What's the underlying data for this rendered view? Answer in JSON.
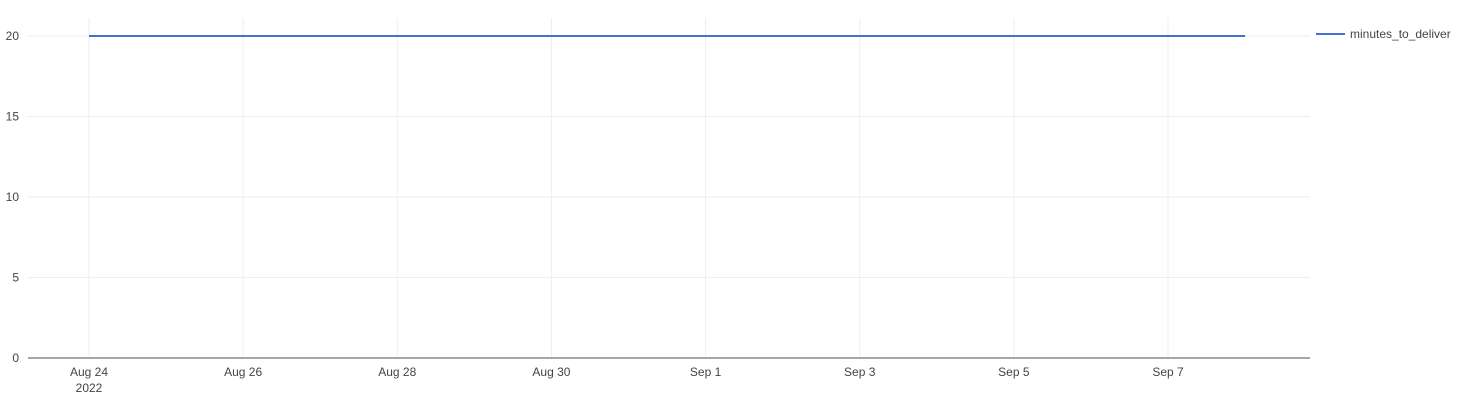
{
  "chart_data": {
    "type": "line",
    "title": "",
    "xlabel": "",
    "ylabel": "",
    "x_axis_type": "date",
    "x_range": [
      "2022-08-23",
      "2022-09-09"
    ],
    "ylim": [
      0,
      21
    ],
    "y_ticks": [
      0,
      5,
      10,
      15,
      20
    ],
    "x_ticks": [
      {
        "date": "2022-08-24",
        "label": "Aug 24",
        "sublabel": "2022"
      },
      {
        "date": "2022-08-26",
        "label": "Aug 26",
        "sublabel": ""
      },
      {
        "date": "2022-08-28",
        "label": "Aug 28",
        "sublabel": ""
      },
      {
        "date": "2022-08-30",
        "label": "Aug 30",
        "sublabel": ""
      },
      {
        "date": "2022-09-01",
        "label": "Sep 1",
        "sublabel": ""
      },
      {
        "date": "2022-09-03",
        "label": "Sep 3",
        "sublabel": ""
      },
      {
        "date": "2022-09-05",
        "label": "Sep 5",
        "sublabel": ""
      },
      {
        "date": "2022-09-07",
        "label": "Sep 7",
        "sublabel": ""
      }
    ],
    "grid": true,
    "legend_position": "top-right",
    "series": [
      {
        "name": "minutes_to_deliver",
        "color": "#4472ca",
        "points": [
          {
            "x": "2022-08-24",
            "y": 20
          },
          {
            "x": "2022-09-08",
            "y": 20
          }
        ]
      }
    ]
  },
  "colors": {
    "grid": "#eeeeee",
    "axis": "#888888",
    "text": "#444444"
  }
}
